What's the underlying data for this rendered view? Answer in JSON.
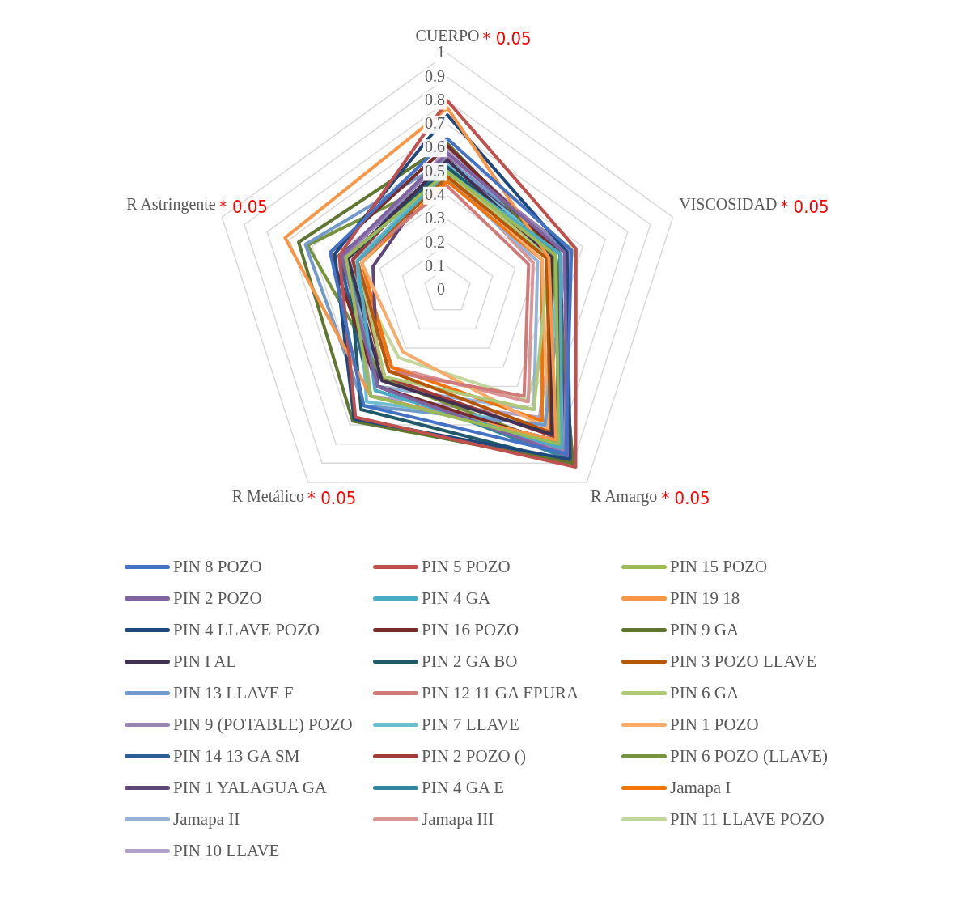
{
  "chart_data": {
    "type": "radar",
    "categories": [
      "CUERPO",
      "VISCOSIDAD",
      "R Amargo",
      "R Metálico",
      "R Astringente"
    ],
    "annotations": [
      "* 0.05",
      "* 0.05",
      "* 0.05",
      "* 0.05",
      "* 0.05"
    ],
    "ylim": [
      0,
      1
    ],
    "yticks": [
      0,
      0.1,
      0.2,
      0.3,
      0.4,
      0.5,
      0.6,
      0.7,
      0.8,
      0.9,
      1
    ],
    "grid": true,
    "legend": "bottom",
    "series": [
      {
        "name": "PIN 8 POZO",
        "color": "#4472c4",
        "values": [
          0.64,
          0.55,
          0.85,
          0.6,
          0.52
        ]
      },
      {
        "name": "PIN 5 POZO",
        "color": "#c0504d",
        "values": [
          0.8,
          0.57,
          0.92,
          0.66,
          0.48
        ]
      },
      {
        "name": "PIN 15 POZO",
        "color": "#9bbb59",
        "values": [
          0.5,
          0.48,
          0.8,
          0.55,
          0.45
        ]
      },
      {
        "name": "PIN 2 POZO",
        "color": "#8064a2",
        "values": [
          0.58,
          0.52,
          0.86,
          0.5,
          0.47
        ]
      },
      {
        "name": "PIN 4 GA",
        "color": "#4bacc6",
        "values": [
          0.5,
          0.5,
          0.82,
          0.52,
          0.4
        ]
      },
      {
        "name": "PIN 19 18",
        "color": "#f79646",
        "values": [
          0.77,
          0.45,
          0.78,
          0.55,
          0.72
        ]
      },
      {
        "name": "PIN 4 LLAVE POZO",
        "color": "#1f497d",
        "values": [
          0.74,
          0.53,
          0.88,
          0.67,
          0.5
        ]
      },
      {
        "name": "PIN 16 POZO",
        "color": "#772c2a",
        "values": [
          0.61,
          0.5,
          0.8,
          0.5,
          0.52
        ]
      },
      {
        "name": "PIN 9 GA",
        "color": "#5f7530",
        "values": [
          0.62,
          0.48,
          0.9,
          0.68,
          0.66
        ]
      },
      {
        "name": "PIN I AL",
        "color": "#403152",
        "values": [
          0.55,
          0.46,
          0.75,
          0.47,
          0.44
        ]
      },
      {
        "name": "PIN 2 GA BO",
        "color": "#215968",
        "values": [
          0.52,
          0.48,
          0.9,
          0.62,
          0.44
        ]
      },
      {
        "name": "PIN 3 POZO LLAVE",
        "color": "#b65708",
        "values": [
          0.48,
          0.44,
          0.74,
          0.42,
          0.4
        ]
      },
      {
        "name": "PIN 13 LLAVE F",
        "color": "#729aca",
        "values": [
          0.55,
          0.53,
          0.7,
          0.6,
          0.63
        ]
      },
      {
        "name": "PIN 12 11 GA EPURA",
        "color": "#d07b79",
        "values": [
          0.44,
          0.36,
          0.55,
          0.42,
          0.4
        ]
      },
      {
        "name": "PIN 6 GA",
        "color": "#afc97a",
        "values": [
          0.5,
          0.45,
          0.62,
          0.45,
          0.4
        ]
      },
      {
        "name": "PIN 9 (POTABLE) POZO",
        "color": "#9983b5",
        "values": [
          0.57,
          0.54,
          0.84,
          0.5,
          0.46
        ]
      },
      {
        "name": "PIN 7 LLAVE",
        "color": "#6fbdd1",
        "values": [
          0.53,
          0.5,
          0.7,
          0.58,
          0.4
        ]
      },
      {
        "name": "PIN 1 POZO",
        "color": "#f9ab6b",
        "values": [
          0.5,
          0.42,
          0.72,
          0.32,
          0.38
        ]
      },
      {
        "name": "PIN 14 13 GA SM",
        "color": "#2c5d98",
        "values": [
          0.52,
          0.5,
          0.78,
          0.55,
          0.48
        ]
      },
      {
        "name": "PIN 2 POZO ()",
        "color": "#a23b38",
        "values": [
          0.56,
          0.45,
          0.76,
          0.45,
          0.42
        ]
      },
      {
        "name": "PIN 6 POZO (LLAVE)",
        "color": "#77933c",
        "values": [
          0.48,
          0.47,
          0.82,
          0.46,
          0.62
        ]
      },
      {
        "name": "PIN 1 YALAGUA GA",
        "color": "#5e4679",
        "values": [
          0.55,
          0.5,
          0.85,
          0.5,
          0.33
        ]
      },
      {
        "name": "PIN 4 GA E",
        "color": "#31859c",
        "values": [
          0.5,
          0.52,
          0.88,
          0.5,
          0.45
        ]
      },
      {
        "name": "Jamapa I",
        "color": "#f1740b",
        "values": [
          0.46,
          0.42,
          0.68,
          0.4,
          0.38
        ]
      },
      {
        "name": "Jamapa II",
        "color": "#95b3d7",
        "values": [
          0.47,
          0.4,
          0.62,
          0.5,
          0.42
        ]
      },
      {
        "name": "Jamapa III",
        "color": "#d99694",
        "values": [
          0.5,
          0.38,
          0.58,
          0.4,
          0.4
        ]
      },
      {
        "name": "PIN 11 LLAVE POZO",
        "color": "#c3d69b",
        "values": [
          0.52,
          0.56,
          0.57,
          0.35,
          0.45
        ]
      },
      {
        "name": "PIN 10 LLAVE",
        "color": "#b3a2c7",
        "values": [
          0.6,
          0.52,
          0.66,
          0.55,
          0.42
        ]
      }
    ]
  }
}
